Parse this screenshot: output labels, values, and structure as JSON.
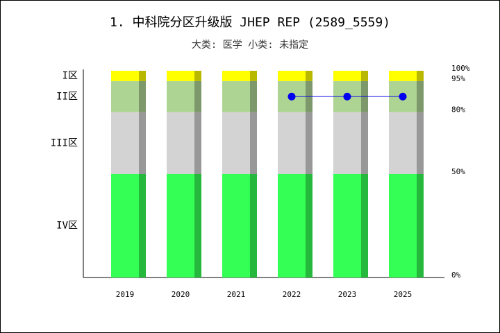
{
  "chart_data": {
    "type": "stacked_bar",
    "title": "1. 中科院分区升级版 JHEP REP (2589_5559)",
    "subtitle": "大类: 医学 小类: 未指定",
    "categories": [
      "2019",
      "2020",
      "2021",
      "2022",
      "2023",
      "2025"
    ],
    "series": [
      {
        "name": "IV区",
        "color": "#33ff55",
        "values": [
          50,
          50,
          50,
          50,
          50,
          50
        ]
      },
      {
        "name": "III区",
        "color": "#d3d3d3",
        "values": [
          30,
          30,
          30,
          30,
          30,
          30
        ]
      },
      {
        "name": "II区",
        "color": "#aed494",
        "values": [
          15,
          15,
          15,
          15,
          15,
          15
        ]
      },
      {
        "name": "I区",
        "color": "#ffff00",
        "values": [
          5,
          5,
          5,
          5,
          5,
          5
        ]
      }
    ],
    "line": {
      "color": "#0000ee",
      "values": [
        null,
        null,
        null,
        87.5,
        87.5,
        87.5
      ]
    },
    "ylim": [
      0,
      100
    ],
    "yticks": [
      {
        "value": 0,
        "label": "0%"
      },
      {
        "value": 50,
        "label": "50%"
      },
      {
        "value": 80,
        "label": "80%"
      },
      {
        "value": 95,
        "label": "95%"
      },
      {
        "value": 100,
        "label": "100%"
      }
    ]
  }
}
